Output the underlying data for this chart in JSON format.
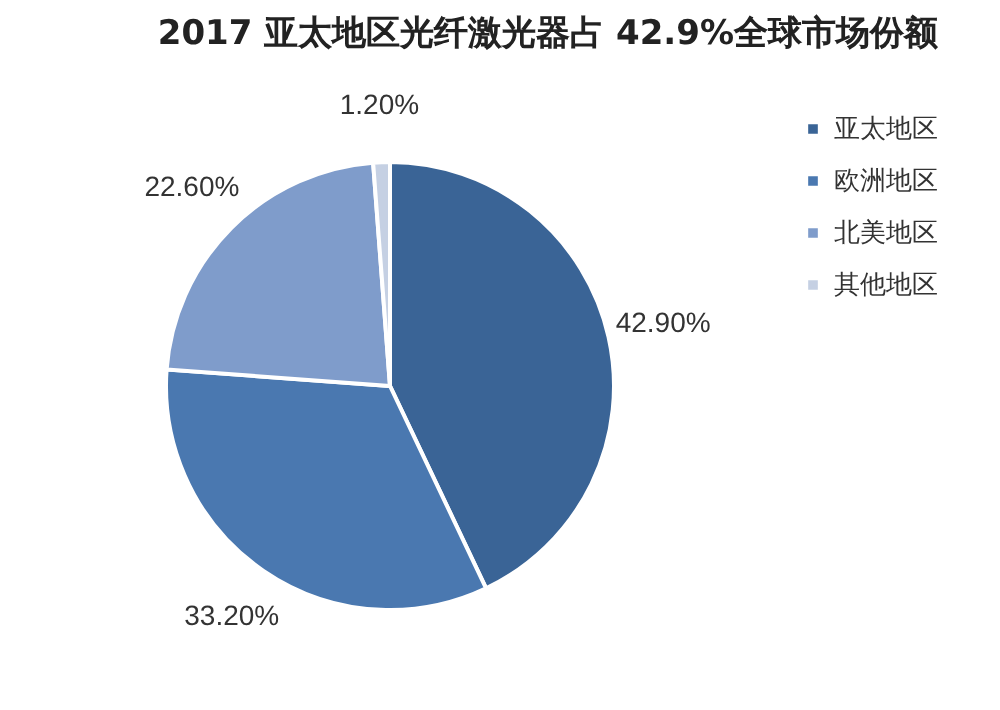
{
  "chart_data": {
    "type": "pie",
    "title": "2017 亚太地区光纤激光器占 42.9%全球市场份额",
    "categories": [
      "亚太地区",
      "欧洲地区",
      "北美地区",
      "其他地区"
    ],
    "values": [
      42.9,
      33.2,
      22.6,
      1.2
    ],
    "value_labels": [
      "42.90%",
      "33.20%",
      "22.60%",
      "1.20%"
    ],
    "colors": [
      "#3a6496",
      "#4a78b0",
      "#7f9ccb",
      "#c5d0e3"
    ],
    "legend": "right"
  }
}
